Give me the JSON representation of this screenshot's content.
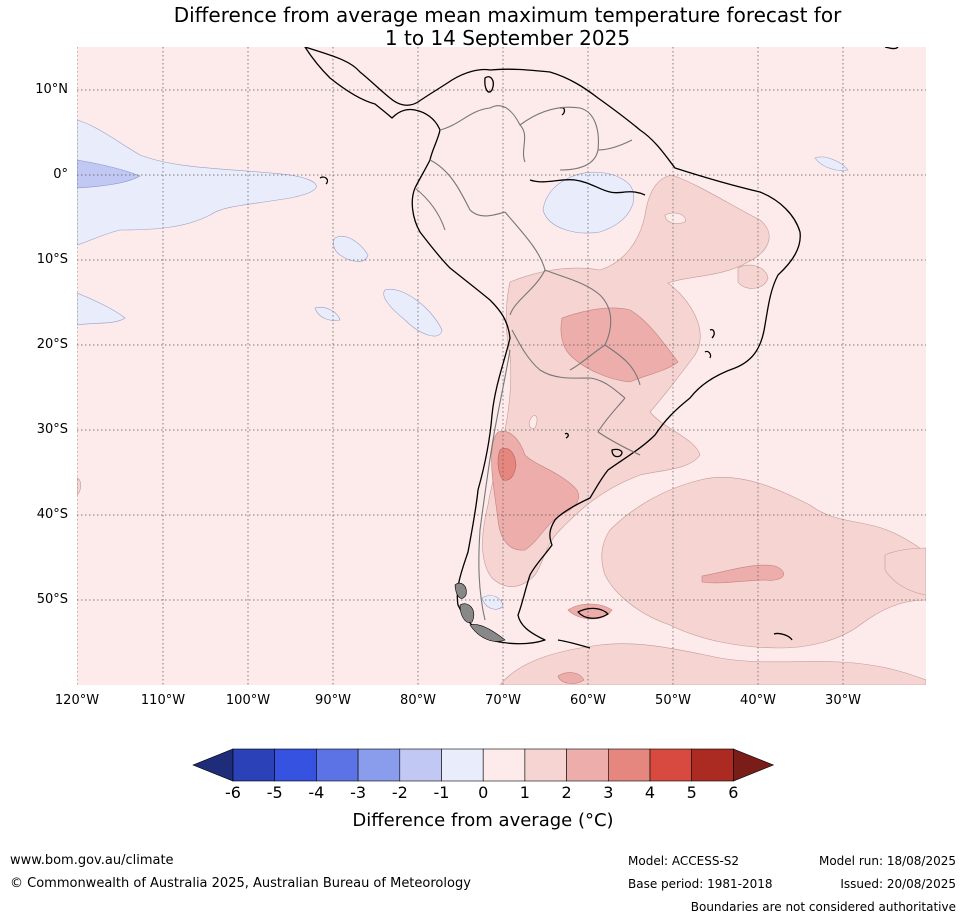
{
  "title_line1": "Difference from average mean maximum temperature forecast for",
  "title_line2": "1 to 14 September 2025",
  "lat_labels": [
    "10°N",
    "0°",
    "10°S",
    "20°S",
    "30°S",
    "40°S",
    "50°S"
  ],
  "lon_labels": [
    "120°W",
    "110°W",
    "100°W",
    "90°W",
    "80°W",
    "70°W",
    "60°W",
    "50°W",
    "40°W",
    "30°W"
  ],
  "colorbar": {
    "ticks": [
      "-6",
      "-5",
      "-4",
      "-3",
      "-2",
      "-1",
      "0",
      "1",
      "2",
      "3",
      "4",
      "5",
      "6"
    ],
    "colors": [
      "#1f2c7a",
      "#2a41b8",
      "#3552e0",
      "#5c73e6",
      "#8a9cec",
      "#c0c8f3",
      "#e9ecfb",
      "#fcebea",
      "#f5d4d2",
      "#edaeab",
      "#e5877f",
      "#d84a3f",
      "#ab2b22",
      "#7a1c18"
    ],
    "label": "Difference from average (°C)"
  },
  "footer": {
    "website": "www.bom.gov.au/climate",
    "copyright": "© Commonwealth of Australia 2025, Australian Bureau of Meteorology",
    "model": "Model: ACCESS-S2",
    "base_period": "Base period: 1981-2018",
    "model_run": "Model run: 18/08/2025",
    "issued": "Issued: 20/08/2025",
    "boundaries": "Boundaries are not considered authoritative"
  }
}
